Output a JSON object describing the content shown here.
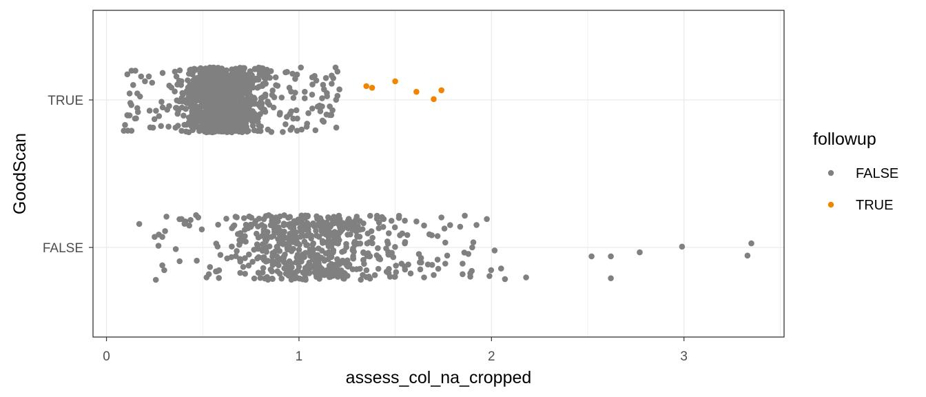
{
  "chart_data": {
    "type": "scatter",
    "jitter": true,
    "xlabel": "assess_col_na_cropped",
    "ylabel": "GoodScan",
    "x_ticks": [
      "0",
      "1",
      "2",
      "3"
    ],
    "y_categories": [
      "FALSE",
      "TRUE"
    ],
    "xlim": [
      -0.07,
      3.52
    ],
    "grid": true,
    "theme": "bw",
    "legend": {
      "title": "followup",
      "position": "right",
      "entries": [
        {
          "label": "FALSE",
          "color": "#808080"
        },
        {
          "label": "TRUE",
          "color": "#f28500"
        }
      ]
    },
    "series": [
      {
        "name": "FALSE",
        "color": "#808080",
        "groups": [
          {
            "category": "TRUE",
            "n": 1150,
            "x_range": [
              0.09,
              1.2
            ],
            "dense_range": [
              0.3,
              0.9
            ],
            "points": [
              [
                0.09,
                -0.38
              ],
              [
                0.13,
                -0.38
              ],
              [
                0.11,
                -0.19
              ],
              [
                0.12,
                -0.19
              ],
              [
                0.16,
                -0.1
              ],
              [
                0.16,
                0.08
              ],
              [
                0.13,
                0.36
              ],
              [
                0.15,
                0.36
              ],
              [
                0.18,
                0.29
              ],
              [
                0.22,
                0.29
              ],
              [
                0.2,
                0.23
              ],
              [
                0.12,
                0.08
              ],
              [
                0.82,
                -0.12
              ],
              [
                0.9,
                -0.18
              ],
              [
                0.91,
                0.03
              ],
              [
                1.04,
                -0.33
              ],
              [
                0.99,
                -0.38
              ],
              [
                1.01,
                0.4
              ],
              [
                0.93,
                0.34
              ],
              [
                1.17,
                0.3
              ],
              [
                1.2,
                0.35
              ],
              [
                1.19,
                0.4
              ],
              [
                1.14,
                0.27
              ],
              [
                1.17,
                0.2
              ],
              [
                1.21,
                0.13
              ],
              [
                1.2,
                0.05
              ],
              [
                1.12,
                0.02
              ],
              [
                1.16,
                -0.08
              ],
              [
                1.12,
                -0.08
              ],
              [
                1.03,
                0.1
              ],
              [
                1.07,
                0.19
              ],
              [
                1.03,
                0.02
              ],
              [
                0.98,
                0.09
              ],
              [
                0.95,
                0.15
              ],
              [
                0.96,
                -0.14
              ],
              [
                0.98,
                0.26
              ],
              [
                1.09,
                0.24
              ],
              [
                1.13,
                0.13
              ],
              [
                0.97,
                -0.23
              ],
              [
                0.93,
                -0.3
              ]
            ]
          },
          {
            "category": "FALSE",
            "n": 640,
            "x_range": [
              0.17,
              3.36
            ],
            "dense_range": [
              0.4,
              1.7
            ],
            "points": [
              [
                0.17,
                0.29
              ],
              [
                0.25,
                0.13
              ],
              [
                0.27,
                0.02
              ],
              [
                0.29,
                -0.22
              ],
              [
                0.3,
                -0.28
              ],
              [
                0.29,
                0.13
              ],
              [
                0.39,
                0.35
              ],
              [
                0.41,
                0.32
              ],
              [
                0.43,
                0.27
              ],
              [
                0.36,
                -0.02
              ],
              [
                0.38,
                -0.17
              ],
              [
                0.52,
                -0.37
              ],
              [
                1.76,
                0.06
              ],
              [
                1.77,
                -0.1
              ],
              [
                1.72,
                -0.15
              ],
              [
                1.76,
                -0.2
              ],
              [
                1.9,
                0.0
              ],
              [
                1.88,
                -0.08
              ],
              [
                1.85,
                -0.2
              ],
              [
                1.89,
                -0.32
              ],
              [
                1.89,
                -0.36
              ],
              [
                1.85,
                -0.33
              ],
              [
                1.7,
                -0.34
              ],
              [
                1.65,
                -0.37
              ],
              [
                1.58,
                -0.32
              ],
              [
                1.63,
                -0.27
              ],
              [
                1.67,
                -0.21
              ],
              [
                2.05,
                -0.26
              ],
              [
                2.07,
                -0.39
              ],
              [
                2.18,
                -0.37
              ],
              [
                2.52,
                -0.11
              ],
              [
                2.62,
                -0.11
              ],
              [
                2.77,
                -0.06
              ],
              [
                2.99,
                0.01
              ],
              [
                3.35,
                0.05
              ],
              [
                3.33,
                -0.1
              ],
              [
                2.62,
                -0.38
              ],
              [
                1.3,
                0.38
              ],
              [
                1.37,
                0.39
              ],
              [
                1.44,
                0.35
              ],
              [
                1.55,
                0.33
              ],
              [
                1.52,
                0.39
              ],
              [
                1.61,
                0.32
              ],
              [
                1.65,
                0.27
              ],
              [
                1.69,
                0.15
              ],
              [
                1.74,
                0.37
              ],
              [
                1.72,
                0.14
              ],
              [
                1.55,
                0.05
              ]
            ]
          }
        ]
      },
      {
        "name": "TRUE",
        "color": "#f28500",
        "groups": [
          {
            "category": "TRUE",
            "points": [
              [
                1.35,
                0.17
              ],
              [
                1.38,
                0.15
              ],
              [
                1.5,
                0.23
              ],
              [
                1.61,
                0.1
              ],
              [
                1.7,
                0.01
              ],
              [
                1.74,
                0.12
              ]
            ]
          }
        ]
      }
    ]
  }
}
